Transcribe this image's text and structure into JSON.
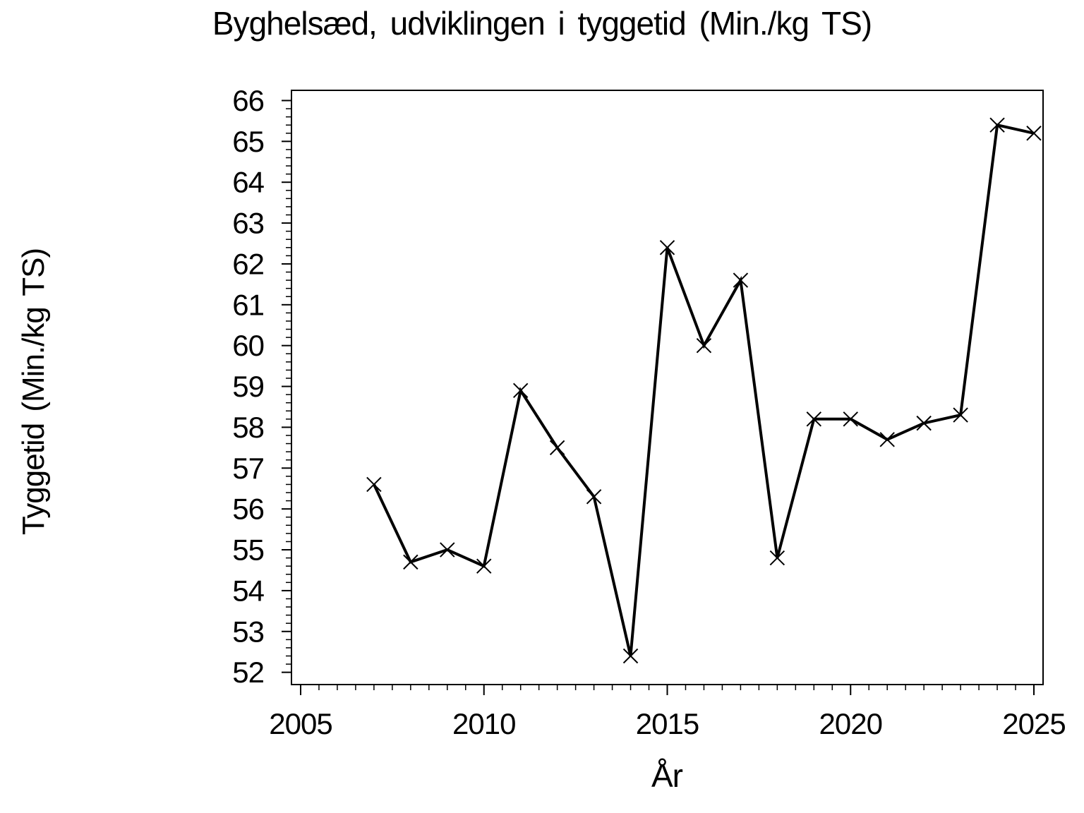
{
  "chart_data": {
    "type": "line",
    "title": "Byghelsæd, udviklingen i tyggetid (Min./kg TS)",
    "xlabel": "År",
    "ylabel": "Tyggetid (Min./kg TS)",
    "x": [
      2007,
      2008,
      2009,
      2010,
      2011,
      2012,
      2013,
      2014,
      2015,
      2016,
      2017,
      2018,
      2019,
      2020,
      2021,
      2022,
      2023,
      2024,
      2025
    ],
    "y": [
      56.6,
      54.7,
      55.0,
      54.6,
      58.9,
      57.5,
      56.3,
      52.4,
      62.4,
      60.0,
      61.6,
      54.8,
      58.2,
      58.2,
      57.7,
      58.1,
      58.3,
      65.4,
      65.2
    ],
    "x_axis": {
      "min": 2004.75,
      "max": 2025.25,
      "major_ticks": [
        2005,
        2010,
        2015,
        2020,
        2025
      ],
      "minor_tick_step": 0.5
    },
    "y_axis": {
      "min": 51.7,
      "max": 66.25,
      "major_ticks": [
        52,
        53,
        54,
        55,
        56,
        57,
        58,
        59,
        60,
        61,
        62,
        63,
        64,
        65,
        66
      ],
      "minor_tick_step": 0.2
    },
    "marker": "x-cross",
    "line_color": "#000000",
    "background_color": "#ffffff",
    "grid": false,
    "legend": false
  }
}
